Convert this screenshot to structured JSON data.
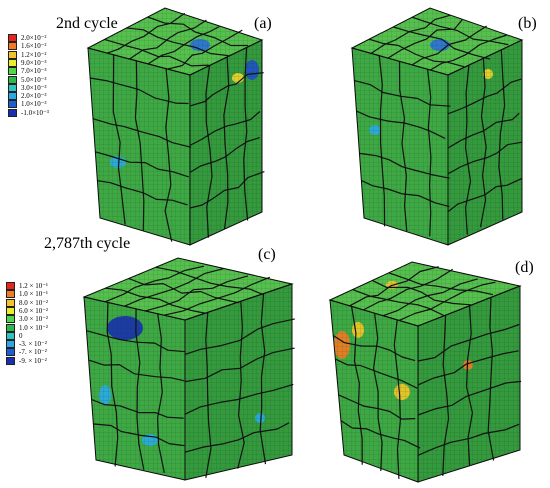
{
  "headings": {
    "top": "2nd cycle",
    "bottom": "2,787th cycle"
  },
  "panel_labels": [
    "(a)",
    "(b)",
    "(c)",
    "(d)"
  ],
  "legend_top": {
    "labels": [
      "2.0×10⁻²",
      "1.6×10⁻²",
      "1.2×10⁻²",
      "9.0×10⁻³",
      "7.0×10⁻³",
      "5.0×10⁻³",
      "3.0×10⁻³",
      "2.0×10⁻³",
      "1.0×10⁻³",
      "-1.0×10⁻³"
    ],
    "colors": [
      "#e8231c",
      "#f27a23",
      "#f5c428",
      "#e6ef2a",
      "#4fd64a",
      "#2fb84a",
      "#2ec4c0",
      "#2aa8e6",
      "#1a5fd6",
      "#1a2fb0"
    ]
  },
  "legend_bottom": {
    "labels": [
      "1.2 × 10⁻¹",
      "1.0 × 10⁻¹",
      "8.0 × 10⁻²",
      "6.0 × 10⁻²",
      "3.0 × 10⁻²",
      "1.0 × 10⁻²",
      "0",
      "-3. × 10⁻²",
      "-7. × 10⁻²",
      "-9. × 10⁻²"
    ],
    "colors": [
      "#e8231c",
      "#f27a23",
      "#f5c428",
      "#e6ef2a",
      "#4fd64a",
      "#2fb84a",
      "#2ec4c0",
      "#2aa8e6",
      "#1a5fd6",
      "#1a2fb0"
    ]
  },
  "colors": {
    "cube_top": "#56c04f",
    "cube_left": "#3ea844",
    "cube_right": "#349a3d",
    "grain_boundary": "#111111",
    "mesh_line": "#0d3a12"
  }
}
